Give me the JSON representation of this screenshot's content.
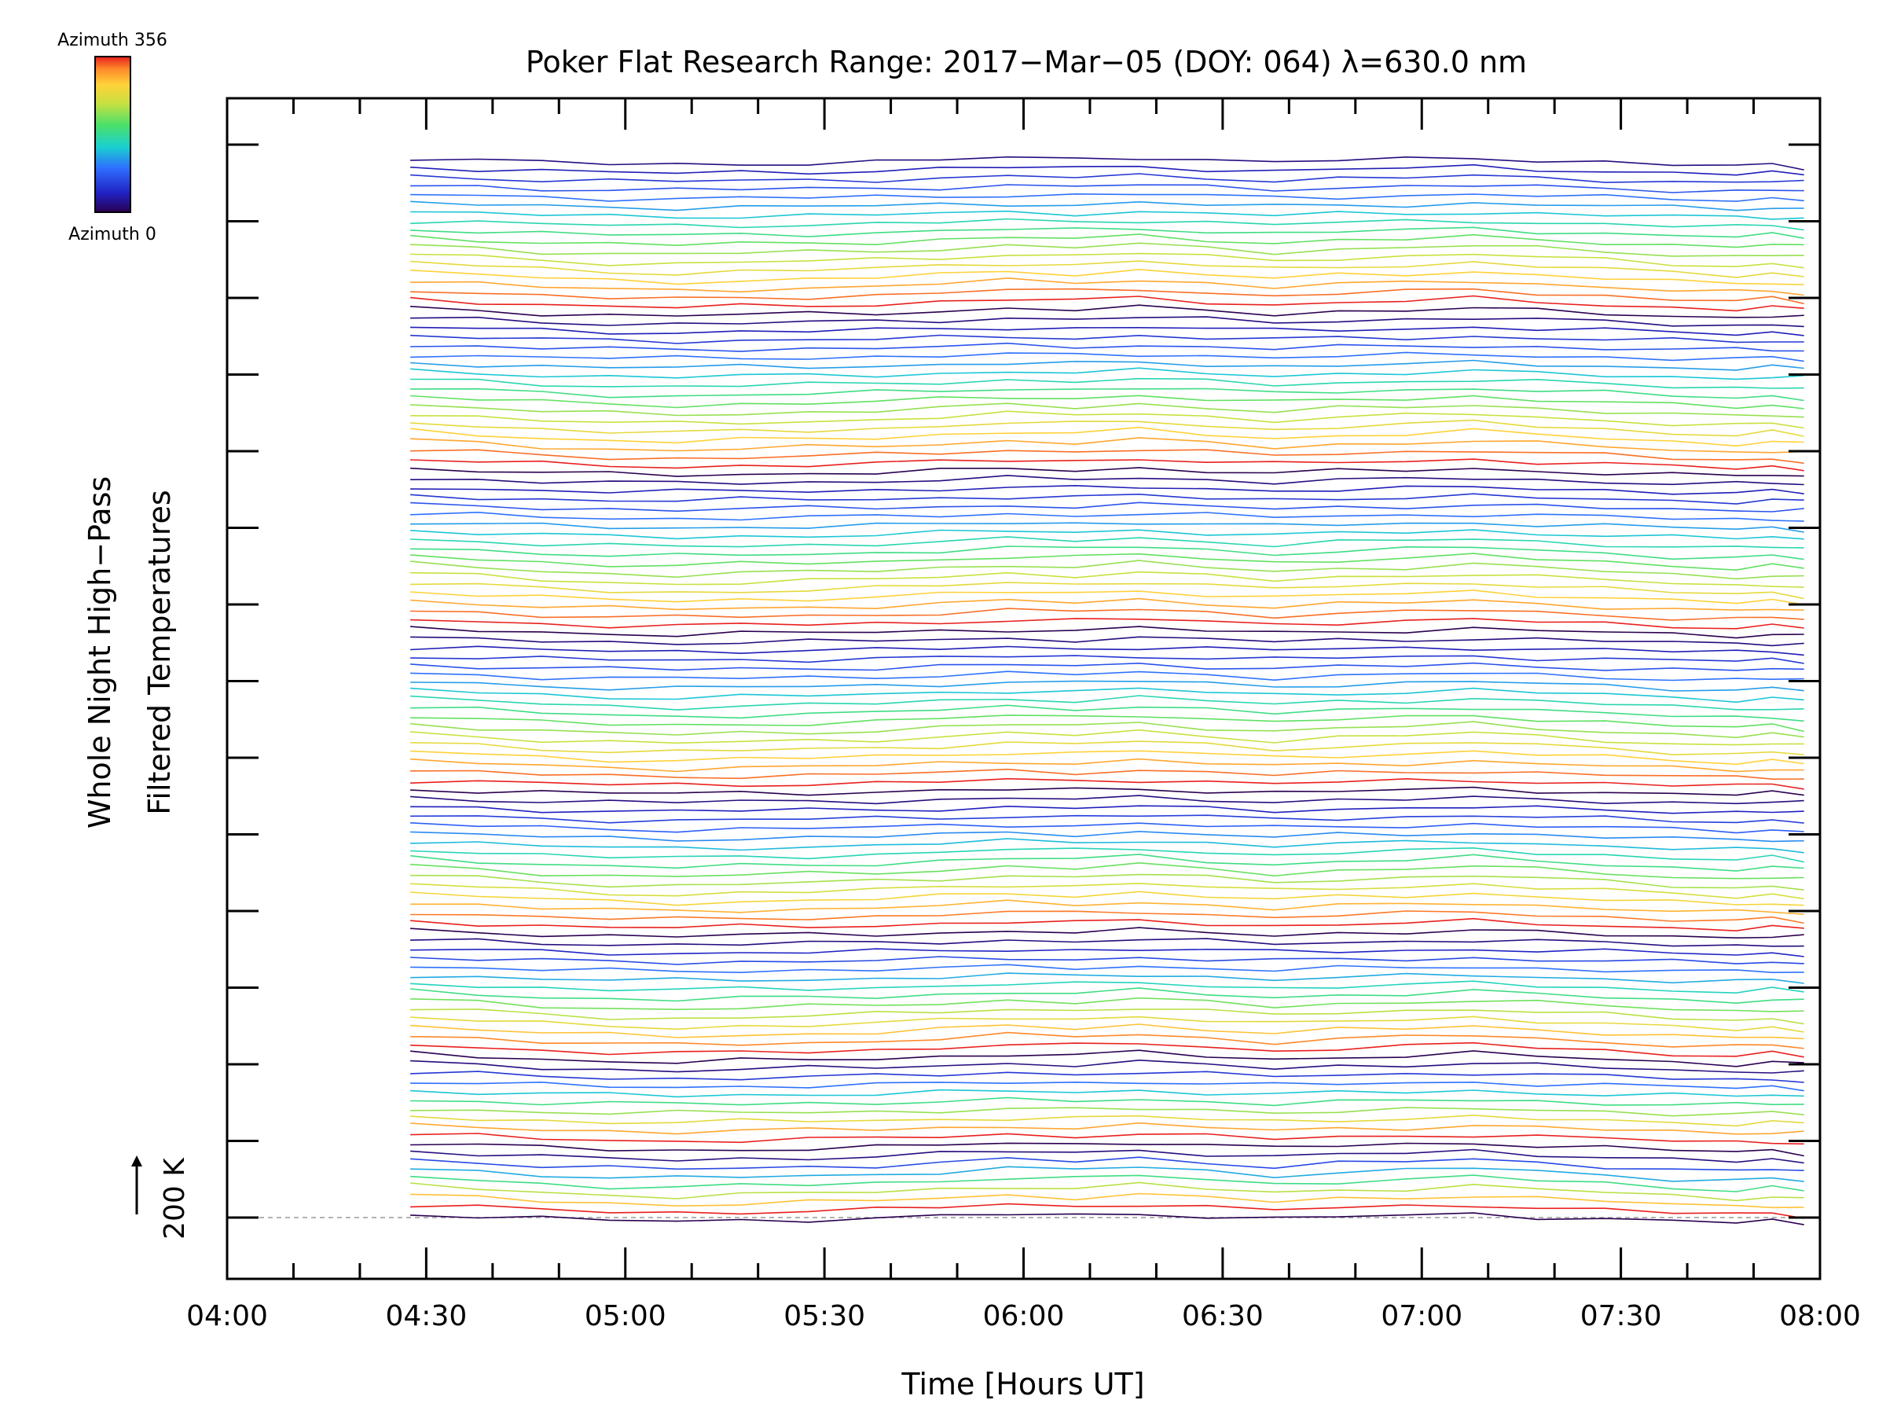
{
  "chart_data": {
    "type": "line",
    "title": "Poker Flat Research Range: 2017−Mar−05 (DOY: 064) λ=630.0 nm",
    "xlabel": "Time [Hours UT]",
    "ylabel_line1": "Whole Night High−Pass",
    "ylabel_line2": "Filtered Temperatures",
    "scale_bar_label": "200 K",
    "scale_bar_value_K": 200,
    "x_ticks": [
      "04:00",
      "04:30",
      "05:00",
      "05:30",
      "06:00",
      "06:30",
      "07:00",
      "07:30",
      "08:00"
    ],
    "x_tick_hours": [
      4.0,
      4.5,
      5.0,
      5.5,
      6.0,
      6.5,
      7.0,
      7.5,
      8.0
    ],
    "xlim_hours": [
      4.0,
      8.0
    ],
    "series_count": 120,
    "series_sequence": "stacked traces, bottom to top, each row cycling through azimuth 0 to 356 in groups",
    "group_sizes": [
      8,
      10,
      14,
      16,
      18,
      18,
      18,
      18
    ],
    "x_sample_hours": [
      4.46,
      4.63,
      4.79,
      4.96,
      5.13,
      5.29,
      5.46,
      5.63,
      5.79,
      5.96,
      6.13,
      6.29,
      6.46,
      6.63,
      6.79,
      6.96,
      7.13,
      7.29,
      7.46,
      7.63,
      7.79,
      7.88,
      7.96
    ],
    "common_pattern_K": [
      10,
      4,
      -3,
      -8,
      -10,
      -7,
      -5,
      -2,
      3,
      9,
      6,
      12,
      4,
      -4,
      2,
      5,
      10,
      3,
      -3,
      -10,
      -14,
      -10,
      -16
    ],
    "colorbar": {
      "top_label": "Azimuth 356",
      "bottom_label": "Azimuth 0",
      "azimuth_range": [
        0,
        356
      ],
      "colormap": "rainbow (dark purple → blue → cyan → green → yellow → orange → red)"
    },
    "baseline_style": "dashed grey line at lowest trace level",
    "grid": false
  }
}
